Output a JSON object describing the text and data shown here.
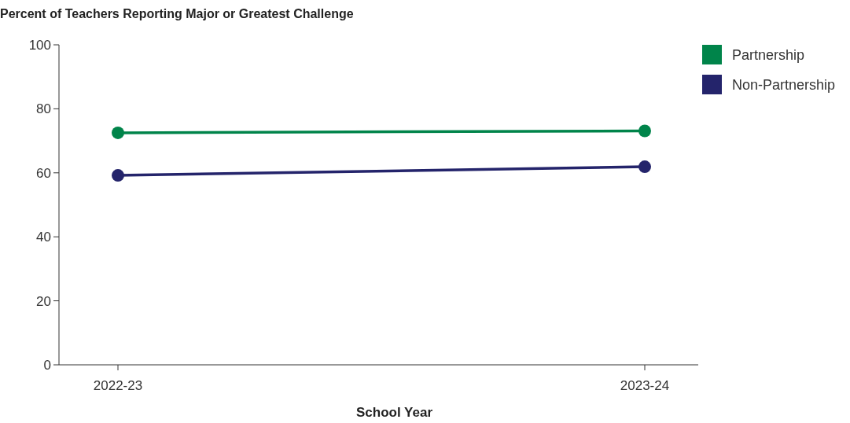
{
  "chart_data": {
    "type": "line",
    "title": "Percent of Teachers Reporting Major or Greatest Challenge",
    "xlabel": "School Year",
    "categories": [
      "2022-23",
      "2023-24"
    ],
    "series": [
      {
        "name": "Partnership",
        "color": "#00844a",
        "values": [
          72.5,
          73.1
        ]
      },
      {
        "name": "Non-Partnership",
        "color": "#24246b",
        "values": [
          59.2,
          61.9
        ]
      }
    ],
    "ylim": [
      0,
      100
    ],
    "yticks": [
      0,
      20,
      40,
      60,
      80,
      100
    ],
    "grid": false,
    "legend": "top right",
    "marker": "circle",
    "line_style": "solid"
  }
}
